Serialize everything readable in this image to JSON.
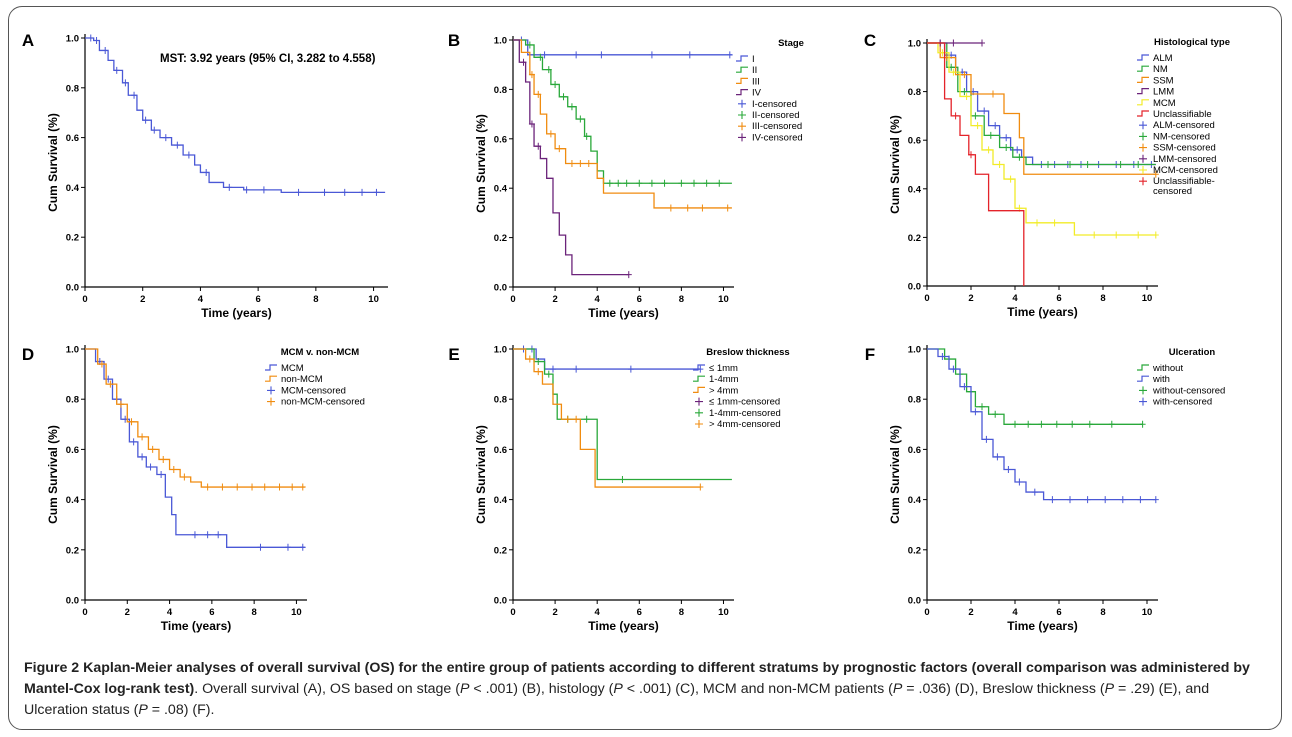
{
  "colors": {
    "blue": "#4a58d6",
    "green": "#29a83a",
    "orange": "#f08c10",
    "purple": "#6b237a",
    "yellow": "#f2ec28",
    "red": "#e4232a",
    "axis": "#000000"
  },
  "caption": {
    "title": "Figure 2 Kaplan-Meier analyses of overall survival (OS) for the entire group of patients according to different stratums by prognostic factors (overall comparison was administered by Mantel-Cox log-rank test)",
    "parts": [
      ". Overall survival (A), OS based on stage (",
      "P",
      " < .001) (B), histology (",
      "P",
      " < .001) (C), MCM and non-MCM patients (",
      "P",
      " = .036) (D), Breslow thickness (",
      "P",
      " = .29) (E), and Ulceration status (",
      "P",
      " = .08) (F)."
    ]
  },
  "chart_data": [
    {
      "panel": "A",
      "type": "line",
      "ylabel": "Cum Survival (%)",
      "xlabel": "Time (years)",
      "xlim": [
        0,
        10.5
      ],
      "ylim": [
        0,
        1.0
      ],
      "xticks": [
        "0",
        "2",
        "4",
        "6",
        "8",
        "10"
      ],
      "yticks": [
        "0.0",
        "0.2",
        "0.4",
        "0.6",
        "0.8",
        "1.0"
      ],
      "annotation": "MST: 3.92 years (95% CI, 3.282 to 4.558)",
      "legend_title": "",
      "legend": [],
      "series": [
        {
          "color": "blue",
          "x": [
            0,
            0.3,
            0.5,
            0.8,
            1.0,
            1.3,
            1.5,
            1.8,
            2.0,
            2.3,
            2.6,
            3.0,
            3.4,
            3.8,
            4.0,
            4.3,
            4.8,
            5.5,
            6.8,
            8.0,
            10.4
          ],
          "y": [
            1.0,
            0.99,
            0.95,
            0.91,
            0.87,
            0.82,
            0.77,
            0.71,
            0.67,
            0.63,
            0.6,
            0.57,
            0.53,
            0.49,
            0.46,
            0.42,
            0.4,
            0.39,
            0.38,
            0.38,
            0.38
          ],
          "censored": [
            0.2,
            0.4,
            0.7,
            1.1,
            1.4,
            1.7,
            2.1,
            2.4,
            2.8,
            3.2,
            3.6,
            4.2,
            5.0,
            5.6,
            6.2,
            7.4,
            8.3,
            9.0,
            9.6,
            10.1
          ]
        }
      ]
    },
    {
      "panel": "B",
      "type": "line",
      "ylabel": "Cum Survival (%)",
      "xlabel": "Time (years)",
      "xlim": [
        0,
        10.5
      ],
      "ylim": [
        0,
        1.0
      ],
      "xticks": [
        "0",
        "2",
        "4",
        "6",
        "8",
        "10"
      ],
      "yticks": [
        "0.0",
        "0.2",
        "0.4",
        "0.6",
        "0.8",
        "1.0"
      ],
      "annotation": "",
      "legend_title": "Stage",
      "legend": [
        {
          "label": "I",
          "color": "blue",
          "kind": "step"
        },
        {
          "label": "II",
          "color": "green",
          "kind": "step"
        },
        {
          "label": "III",
          "color": "orange",
          "kind": "step"
        },
        {
          "label": "IV",
          "color": "purple",
          "kind": "step"
        },
        {
          "label": "I-censored",
          "color": "blue",
          "kind": "plus"
        },
        {
          "label": "II-censored",
          "color": "green",
          "kind": "plus"
        },
        {
          "label": "III-censored",
          "color": "orange",
          "kind": "plus"
        },
        {
          "label": "IV-censored",
          "color": "purple",
          "kind": "plus"
        }
      ],
      "series": [
        {
          "color": "blue",
          "x": [
            0,
            0.7,
            10.4
          ],
          "y": [
            1.0,
            0.94,
            0.94
          ],
          "censored": [
            0.4,
            1.5,
            3.0,
            4.2,
            6.6,
            8.4,
            10.3
          ]
        },
        {
          "color": "green",
          "x": [
            0,
            0.6,
            1.0,
            1.4,
            1.8,
            2.2,
            2.6,
            3.0,
            3.4,
            3.7,
            4.0,
            4.3,
            10.4
          ],
          "y": [
            1.0,
            0.98,
            0.93,
            0.88,
            0.82,
            0.77,
            0.73,
            0.68,
            0.61,
            0.55,
            0.47,
            0.42,
            0.42
          ],
          "censored": [
            0.8,
            1.3,
            1.7,
            2.0,
            2.4,
            2.8,
            3.2,
            3.5,
            4.6,
            5.0,
            5.4,
            6.0,
            6.6,
            7.2,
            8.0,
            8.6,
            9.2,
            9.8
          ]
        },
        {
          "color": "orange",
          "x": [
            0,
            0.4,
            0.8,
            1.0,
            1.3,
            1.6,
            2.0,
            2.5,
            4.0,
            4.3,
            6.7,
            10.4
          ],
          "y": [
            1.0,
            0.95,
            0.86,
            0.78,
            0.7,
            0.62,
            0.56,
            0.5,
            0.44,
            0.38,
            0.32,
            0.32
          ],
          "censored": [
            0.9,
            1.2,
            1.8,
            2.2,
            2.8,
            3.2,
            3.6,
            7.5,
            8.3,
            9.0,
            10.2
          ]
        },
        {
          "color": "purple",
          "x": [
            0,
            0.3,
            0.6,
            0.8,
            1.0,
            1.3,
            1.6,
            1.9,
            2.2,
            2.5,
            2.8,
            5.5
          ],
          "y": [
            1.0,
            0.91,
            0.83,
            0.66,
            0.57,
            0.52,
            0.44,
            0.3,
            0.21,
            0.13,
            0.05,
            0.05
          ],
          "censored": [
            0.5,
            0.9,
            1.2,
            5.5
          ]
        }
      ]
    },
    {
      "panel": "C",
      "type": "line",
      "ylabel": "Cum Survival (%)",
      "xlabel": "Time (years)",
      "xlim": [
        0,
        10.5
      ],
      "ylim": [
        0,
        1.0
      ],
      "xticks": [
        "0",
        "2",
        "4",
        "6",
        "8",
        "10"
      ],
      "yticks": [
        "0.0",
        "0.2",
        "0.4",
        "0.6",
        "0.8",
        "1.0"
      ],
      "annotation": "",
      "legend_title": "Histological type",
      "legend": [
        {
          "label": "ALM",
          "color": "blue",
          "kind": "step"
        },
        {
          "label": "NM",
          "color": "green",
          "kind": "step"
        },
        {
          "label": "SSM",
          "color": "orange",
          "kind": "step"
        },
        {
          "label": "LMM",
          "color": "purple",
          "kind": "step"
        },
        {
          "label": "MCM",
          "color": "yellow",
          "kind": "step"
        },
        {
          "label": "Unclassifiable",
          "color": "red",
          "kind": "step"
        },
        {
          "label": "ALM-censored",
          "color": "blue",
          "kind": "plus"
        },
        {
          "label": "NM-censored",
          "color": "green",
          "kind": "plus"
        },
        {
          "label": "SSM-censored",
          "color": "orange",
          "kind": "plus"
        },
        {
          "label": "LMM-censored",
          "color": "purple",
          "kind": "plus"
        },
        {
          "label": "MCM-censored",
          "color": "yellow",
          "kind": "plus"
        },
        {
          "label": "Unclassifiable-censored",
          "color": "red",
          "kind": "plus"
        }
      ],
      "series": [
        {
          "color": "blue",
          "x": [
            0,
            0.8,
            1.3,
            1.8,
            2.3,
            2.8,
            3.3,
            3.8,
            4.3,
            4.8,
            10.4
          ],
          "y": [
            1.0,
            0.95,
            0.88,
            0.8,
            0.72,
            0.66,
            0.61,
            0.56,
            0.53,
            0.5,
            0.5
          ],
          "censored": [
            0.6,
            1.1,
            1.6,
            2.1,
            2.6,
            3.1,
            3.6,
            4.1,
            5.2,
            5.8,
            6.4,
            7.0,
            7.8,
            8.6,
            9.4,
            10.2
          ]
        },
        {
          "color": "green",
          "x": [
            0,
            0.9,
            1.4,
            2.0,
            2.6,
            3.3,
            3.9,
            4.5,
            10.4
          ],
          "y": [
            1.0,
            0.9,
            0.8,
            0.7,
            0.62,
            0.57,
            0.53,
            0.5,
            0.5
          ],
          "censored": [
            1.1,
            1.7,
            2.2,
            2.9,
            3.6,
            4.2,
            5.5,
            6.5,
            7.3,
            8.8,
            9.6
          ]
        },
        {
          "color": "orange",
          "x": [
            0,
            0.6,
            1.3,
            2.0,
            2.6,
            3.5,
            4.2,
            4.4,
            10.4
          ],
          "y": [
            1.0,
            0.94,
            0.87,
            0.79,
            0.79,
            0.71,
            0.61,
            0.46,
            0.46
          ],
          "censored": [
            0.9,
            1.7,
            3.0,
            10.4
          ]
        },
        {
          "color": "purple",
          "x": [
            0,
            2.5
          ],
          "y": [
            1.0,
            1.0
          ],
          "censored": [
            0.6,
            1.2,
            2.5
          ]
        },
        {
          "color": "yellow",
          "x": [
            0,
            0.5,
            1.0,
            1.5,
            2.0,
            2.5,
            3.0,
            3.5,
            4.0,
            4.5,
            6.7,
            10.4
          ],
          "y": [
            1.0,
            0.96,
            0.88,
            0.78,
            0.66,
            0.56,
            0.5,
            0.44,
            0.32,
            0.26,
            0.21,
            0.21
          ],
          "censored": [
            0.7,
            1.2,
            1.8,
            2.3,
            2.8,
            3.3,
            3.8,
            4.2,
            5.0,
            5.8,
            7.6,
            8.6,
            9.6,
            10.4
          ]
        },
        {
          "color": "red",
          "x": [
            0,
            0.8,
            1.1,
            1.5,
            1.9,
            2.2,
            2.8,
            3.2,
            4.4,
            4.4
          ],
          "y": [
            1.0,
            0.77,
            0.7,
            0.62,
            0.54,
            0.46,
            0.31,
            0.31,
            0.31,
            0.0
          ],
          "censored": [
            1.3,
            2.0
          ]
        }
      ]
    },
    {
      "panel": "D",
      "type": "line",
      "ylabel": "Cum Survival (%)",
      "xlabel": "Time (years)",
      "xlim": [
        0,
        10.5
      ],
      "ylim": [
        0,
        1.0
      ],
      "xticks": [
        "0",
        "2",
        "4",
        "6",
        "8",
        "10"
      ],
      "yticks": [
        "0.0",
        "0.2",
        "0.4",
        "0.6",
        "0.8",
        "1.0"
      ],
      "annotation": "",
      "legend_title": "MCM v. non-MCM",
      "legend": [
        {
          "label": "MCM",
          "color": "blue",
          "kind": "step"
        },
        {
          "label": "non-MCM",
          "color": "orange",
          "kind": "step"
        },
        {
          "label": "MCM-censored",
          "color": "blue",
          "kind": "plus"
        },
        {
          "label": "non-MCM-censored",
          "color": "orange",
          "kind": "plus"
        }
      ],
      "series": [
        {
          "color": "blue",
          "x": [
            0,
            0.5,
            0.9,
            1.3,
            1.7,
            2.1,
            2.5,
            2.9,
            3.4,
            3.8,
            4.1,
            4.3,
            6.7,
            10.4
          ],
          "y": [
            1.0,
            0.95,
            0.88,
            0.8,
            0.72,
            0.63,
            0.57,
            0.53,
            0.5,
            0.41,
            0.34,
            0.26,
            0.21,
            0.21
          ],
          "censored": [
            0.7,
            1.1,
            1.5,
            1.9,
            2.3,
            2.7,
            3.1,
            3.6,
            5.2,
            5.8,
            6.3,
            8.3,
            9.6,
            10.3
          ]
        },
        {
          "color": "orange",
          "x": [
            0,
            0.6,
            1.0,
            1.5,
            2.0,
            2.5,
            3.0,
            3.5,
            4.0,
            4.5,
            5.0,
            5.5,
            10.4
          ],
          "y": [
            1.0,
            0.94,
            0.86,
            0.78,
            0.71,
            0.65,
            0.6,
            0.56,
            0.52,
            0.49,
            0.47,
            0.45,
            0.45
          ],
          "censored": [
            0.8,
            1.2,
            1.7,
            2.2,
            2.7,
            3.2,
            3.7,
            4.2,
            4.7,
            5.8,
            6.5,
            7.2,
            7.9,
            8.5,
            9.2,
            9.8,
            10.3
          ]
        }
      ]
    },
    {
      "panel": "E",
      "type": "line",
      "ylabel": "Cum Survival (%)",
      "xlabel": "Time (years)",
      "xlim": [
        0,
        10.5
      ],
      "ylim": [
        0,
        1.0
      ],
      "xticks": [
        "0",
        "2",
        "4",
        "6",
        "8",
        "10"
      ],
      "yticks": [
        "0.0",
        "0.2",
        "0.4",
        "0.6",
        "0.8",
        "1.0"
      ],
      "annotation": "",
      "legend_title": "Breslow thickness",
      "legend": [
        {
          "label": "≤ 1mm",
          "color": "blue",
          "kind": "step"
        },
        {
          "label": "1-4mm",
          "color": "green",
          "kind": "step"
        },
        {
          "label": "> 4mm",
          "color": "orange",
          "kind": "step"
        },
        {
          "label": "≤ 1mm-censored",
          "color": "purple",
          "kind": "plus"
        },
        {
          "label": "1-4mm-censored",
          "color": "green",
          "kind": "plus"
        },
        {
          "label": "> 4mm-censored",
          "color": "orange",
          "kind": "plus"
        }
      ],
      "series": [
        {
          "color": "blue",
          "x": [
            0,
            1.1,
            1.5,
            8.9
          ],
          "y": [
            1.0,
            0.96,
            0.92,
            0.92
          ],
          "censored": [
            0.5,
            0.9,
            1.9,
            3.0,
            5.6,
            8.9
          ]
        },
        {
          "color": "green",
          "x": [
            0,
            1.0,
            1.5,
            1.9,
            2.1,
            4.0,
            4.0,
            10.4
          ],
          "y": [
            1.0,
            0.95,
            0.9,
            0.82,
            0.72,
            0.72,
            0.48,
            0.48
          ],
          "censored": [
            1.2,
            1.7,
            2.6,
            3.5,
            5.2
          ]
        },
        {
          "color": "orange",
          "x": [
            0,
            0.6,
            1.0,
            1.4,
            1.9,
            2.3,
            3.2,
            3.9,
            8.9
          ],
          "y": [
            1.0,
            0.96,
            0.91,
            0.86,
            0.78,
            0.72,
            0.6,
            0.45,
            0.45
          ],
          "censored": [
            0.8,
            1.2,
            2.6,
            3.0,
            8.9
          ]
        }
      ]
    },
    {
      "panel": "F",
      "type": "line",
      "ylabel": "Cum Survival (%)",
      "xlabel": "Time (years)",
      "xlim": [
        0,
        10.5
      ],
      "ylim": [
        0,
        1.0
      ],
      "xticks": [
        "0",
        "2",
        "4",
        "6",
        "8",
        "10"
      ],
      "yticks": [
        "0.0",
        "0.2",
        "0.4",
        "0.6",
        "0.8",
        "1.0"
      ],
      "annotation": "",
      "legend_title": "Ulceration",
      "legend": [
        {
          "label": "without",
          "color": "green",
          "kind": "step"
        },
        {
          "label": "with",
          "color": "blue",
          "kind": "step"
        },
        {
          "label": "without-censored",
          "color": "green",
          "kind": "plus"
        },
        {
          "label": "with-censored",
          "color": "blue",
          "kind": "plus"
        }
      ],
      "series": [
        {
          "color": "green",
          "x": [
            0,
            0.8,
            1.3,
            1.8,
            2.2,
            2.8,
            3.5,
            9.8
          ],
          "y": [
            1.0,
            0.96,
            0.9,
            0.83,
            0.77,
            0.74,
            0.7,
            0.7
          ],
          "censored": [
            1.0,
            1.5,
            2.0,
            2.5,
            3.1,
            4.0,
            4.6,
            5.2,
            5.9,
            6.6,
            7.4,
            8.4,
            9.8
          ]
        },
        {
          "color": "blue",
          "x": [
            0,
            0.5,
            1.0,
            1.5,
            2.0,
            2.5,
            3.0,
            3.5,
            4.0,
            4.5,
            5.3,
            10.4
          ],
          "y": [
            1.0,
            0.97,
            0.92,
            0.85,
            0.75,
            0.64,
            0.57,
            0.52,
            0.47,
            0.43,
            0.4,
            0.4
          ],
          "censored": [
            0.7,
            1.2,
            1.7,
            2.2,
            2.7,
            3.2,
            3.7,
            4.2,
            4.9,
            5.7,
            6.5,
            7.3,
            8.1,
            8.9,
            9.7,
            10.4
          ]
        }
      ]
    }
  ]
}
